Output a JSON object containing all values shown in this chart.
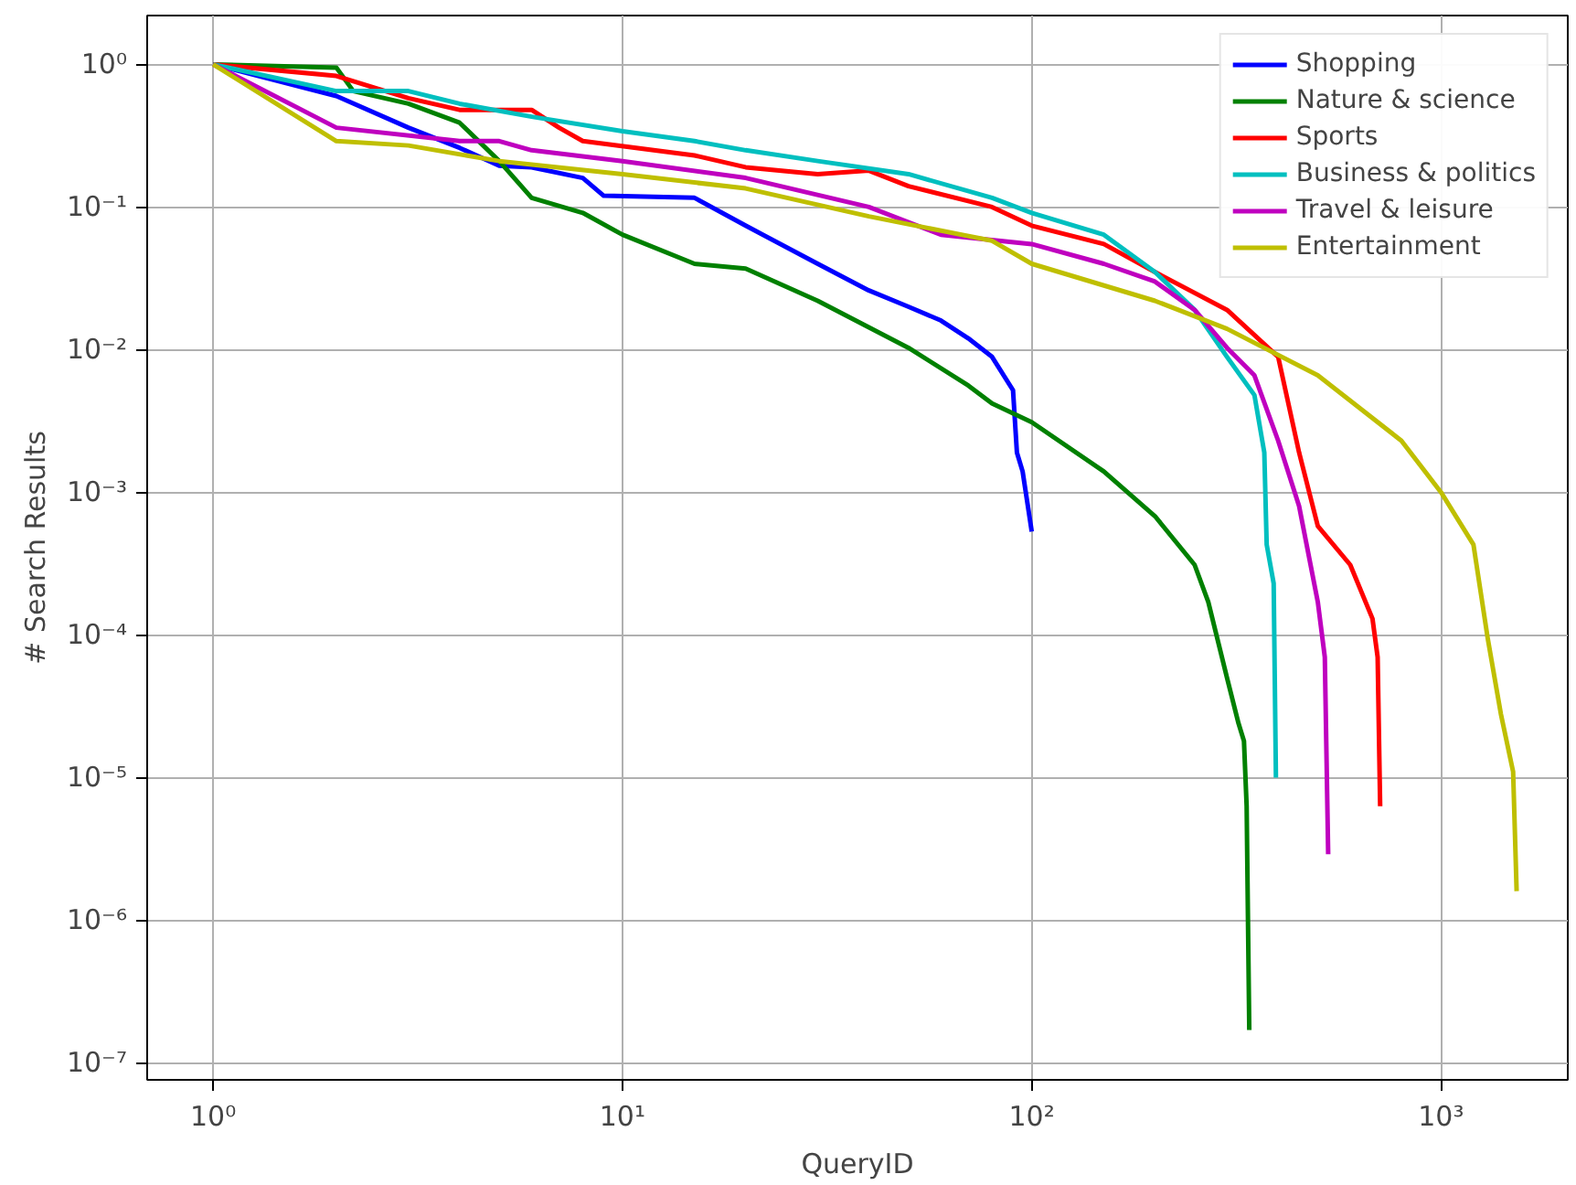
{
  "chart_data": {
    "type": "line",
    "xlabel": "QueryID",
    "ylabel": "# Search Results",
    "log": "xy",
    "grid": true,
    "legend": "top right",
    "line_style": "solid",
    "marker": "none",
    "xlim": [
      0.69,
      2040
    ],
    "ylim": [
      7.6e-08,
      2.2
    ],
    "xticks": [
      {
        "value": 1,
        "label": "10⁰"
      },
      {
        "value": 10,
        "label": "10¹"
      },
      {
        "value": 100,
        "label": "10²"
      },
      {
        "value": 1000,
        "label": "10³"
      }
    ],
    "yticks": [
      {
        "value": 1e-07,
        "label": "10⁻⁷"
      },
      {
        "value": 1e-06,
        "label": "10⁻⁶"
      },
      {
        "value": 1e-05,
        "label": "10⁻⁵"
      },
      {
        "value": 0.0001,
        "label": "10⁻⁴"
      },
      {
        "value": 0.001,
        "label": "10⁻³"
      },
      {
        "value": 0.01,
        "label": "10⁻²"
      },
      {
        "value": 0.1,
        "label": "10⁻¹"
      },
      {
        "value": 1,
        "label": "10⁰"
      }
    ],
    "series": [
      {
        "name": "Shopping",
        "color": "#0000ff",
        "x": [
          1,
          2,
          3,
          4,
          5,
          6,
          8,
          9,
          15,
          20,
          30,
          40,
          50,
          60,
          70,
          80,
          90,
          92,
          95,
          100
        ],
        "values": [
          1,
          0.6,
          0.36,
          0.26,
          0.195,
          0.19,
          0.16,
          0.12,
          0.116,
          0.074,
          0.04,
          0.026,
          0.02,
          0.016,
          0.012,
          0.0089,
          0.0052,
          0.0019,
          0.0014,
          0.00053
        ]
      },
      {
        "name": "Nature & science",
        "color": "#008000",
        "x": [
          1,
          2,
          2.2,
          3,
          4,
          5,
          6,
          8,
          10,
          15,
          20,
          30,
          50,
          70,
          80,
          100,
          150,
          200,
          250,
          270,
          300,
          320,
          330,
          335,
          340
        ],
        "values": [
          1,
          0.95,
          0.65,
          0.53,
          0.39,
          0.21,
          0.116,
          0.091,
          0.064,
          0.04,
          0.037,
          0.022,
          0.0103,
          0.0056,
          0.0042,
          0.0031,
          0.0014,
          0.00068,
          0.00031,
          0.00017,
          5e-05,
          2.4e-05,
          1.8e-05,
          6.3e-06,
          1.7e-07
        ]
      },
      {
        "name": "Sports",
        "color": "#ff0000",
        "x": [
          1,
          2,
          3,
          4,
          6,
          7,
          8,
          15,
          20,
          30,
          40,
          50,
          80,
          100,
          150,
          200,
          300,
          400,
          450,
          500,
          600,
          680,
          700,
          710
        ],
        "values": [
          1,
          0.83,
          0.58,
          0.48,
          0.48,
          0.36,
          0.29,
          0.23,
          0.19,
          0.17,
          0.18,
          0.14,
          0.1,
          0.074,
          0.055,
          0.035,
          0.019,
          0.0089,
          0.0019,
          0.00058,
          0.00031,
          0.00013,
          7e-05,
          6.3e-06
        ]
      },
      {
        "name": "Business & politics",
        "color": "#00bfbf",
        "x": [
          1,
          2,
          3,
          4,
          6,
          10,
          15,
          20,
          30,
          50,
          80,
          100,
          150,
          200,
          250,
          300,
          350,
          370,
          375,
          390,
          395
        ],
        "values": [
          1,
          0.65,
          0.65,
          0.53,
          0.43,
          0.34,
          0.29,
          0.25,
          0.21,
          0.17,
          0.116,
          0.091,
          0.064,
          0.035,
          0.019,
          0.0089,
          0.0048,
          0.0019,
          0.00043,
          0.00023,
          1e-05
        ]
      },
      {
        "name": "Travel & leisure",
        "color": "#bf00bf",
        "x": [
          1,
          2,
          4,
          5,
          6,
          10,
          20,
          40,
          60,
          100,
          150,
          200,
          250,
          300,
          350,
          400,
          450,
          500,
          520,
          530
        ],
        "values": [
          1,
          0.36,
          0.29,
          0.29,
          0.25,
          0.21,
          0.16,
          0.1,
          0.064,
          0.055,
          0.04,
          0.03,
          0.019,
          0.0103,
          0.0066,
          0.0023,
          0.0008,
          0.00017,
          7e-05,
          2.9e-06
        ]
      },
      {
        "name": "Entertainment",
        "color": "#bfbf00",
        "x": [
          1,
          2,
          3,
          5,
          10,
          20,
          40,
          80,
          100,
          200,
          300,
          500,
          800,
          1000,
          1200,
          1300,
          1400,
          1500,
          1530
        ],
        "values": [
          1,
          0.29,
          0.27,
          0.21,
          0.17,
          0.135,
          0.086,
          0.058,
          0.04,
          0.022,
          0.014,
          0.0066,
          0.0023,
          0.001,
          0.00043,
          9.5e-05,
          2.8e-05,
          1.1e-05,
          1.6e-06
        ]
      }
    ]
  }
}
